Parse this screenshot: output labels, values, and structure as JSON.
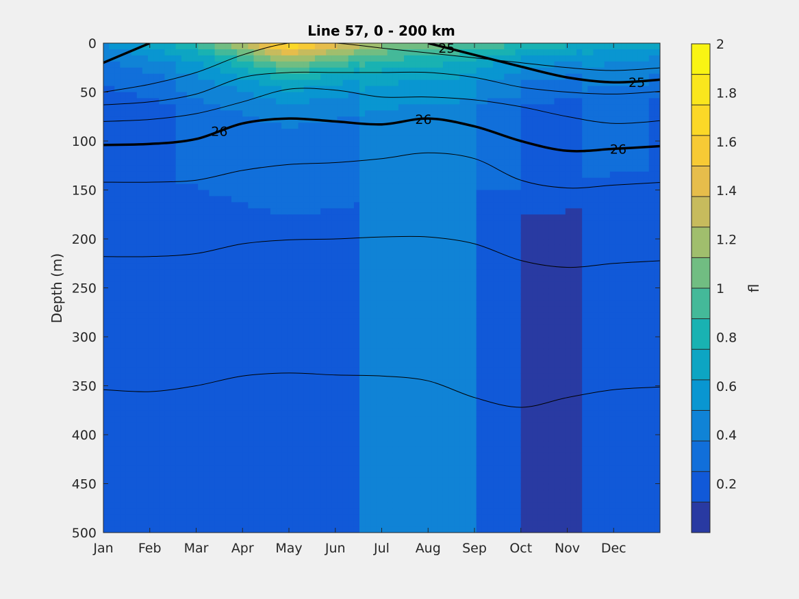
{
  "chart_data": {
    "type": "heatmap",
    "title": "Line 57, 0 - 200 km",
    "xlabel": "",
    "ylabel": "Depth (m)",
    "x_categories": [
      "Jan",
      "Feb",
      "Mar",
      "Apr",
      "May",
      "Jun",
      "Jul",
      "Aug",
      "Sep",
      "Oct",
      "Nov",
      "Dec"
    ],
    "ylim": [
      0,
      500
    ],
    "y_reversed": true,
    "y_ticks": [
      0,
      50,
      100,
      150,
      200,
      250,
      300,
      350,
      400,
      450,
      500
    ],
    "colorbar": {
      "label": "fl",
      "range": [
        0,
        2
      ],
      "ticks": [
        0.2,
        0.4,
        0.6,
        0.8,
        1,
        1.2,
        1.4,
        1.6,
        1.8,
        2
      ],
      "levels": 16,
      "colormap": "parula"
    },
    "surface_fluorescence_by_month": [
      0.5,
      0.7,
      0.9,
      1.3,
      1.8,
      1.5,
      1.2,
      1.1,
      1.0,
      0.9,
      0.8,
      0.7
    ],
    "density_contours": [
      {
        "value": 25,
        "label": "25",
        "bold": true,
        "depth_by_month": [
          20,
          0,
          null,
          null,
          null,
          null,
          null,
          0,
          12,
          24,
          35,
          40
        ]
      },
      {
        "value": 26,
        "label": "26",
        "bold": true,
        "depth_by_month": [
          104,
          103,
          98,
          82,
          77,
          80,
          83,
          77,
          85,
          100,
          110,
          108
        ]
      },
      {
        "value": null,
        "label": "",
        "bold": false,
        "depth_by_month": [
          50,
          42,
          30,
          12,
          0,
          0,
          5,
          10,
          15,
          20,
          25,
          28
        ]
      },
      {
        "value": null,
        "label": "",
        "bold": false,
        "depth_by_month": [
          63,
          60,
          52,
          35,
          30,
          30,
          30,
          30,
          35,
          45,
          50,
          52
        ]
      },
      {
        "value": null,
        "label": "",
        "bold": false,
        "depth_by_month": [
          80,
          78,
          72,
          60,
          47,
          48,
          55,
          55,
          58,
          65,
          75,
          82
        ]
      },
      {
        "value": null,
        "label": "",
        "bold": false,
        "depth_by_month": [
          142,
          142,
          140,
          130,
          124,
          122,
          118,
          112,
          118,
          140,
          148,
          145
        ]
      },
      {
        "value": null,
        "label": "",
        "bold": false,
        "depth_by_month": [
          218,
          218,
          215,
          205,
          201,
          200,
          198,
          198,
          205,
          222,
          229,
          225
        ]
      },
      {
        "value": null,
        "label": "",
        "bold": false,
        "depth_by_month": [
          354,
          356,
          350,
          340,
          337,
          339,
          340,
          345,
          362,
          372,
          362,
          354
        ]
      }
    ]
  }
}
